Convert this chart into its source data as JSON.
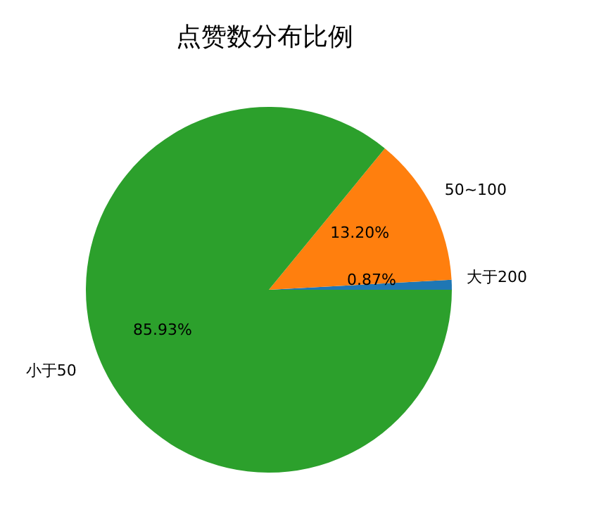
{
  "chart_data": {
    "type": "pie",
    "title": "点赞数分布比例",
    "categories": [
      "大于200",
      "50~100",
      "小于50"
    ],
    "values": [
      0.87,
      13.2,
      85.93
    ],
    "colors": [
      "#1f77b4",
      "#ff7f0e",
      "#2ca02c"
    ],
    "value_labels": [
      "0.87%",
      "13.20%",
      "85.93%"
    ],
    "legend": false
  }
}
